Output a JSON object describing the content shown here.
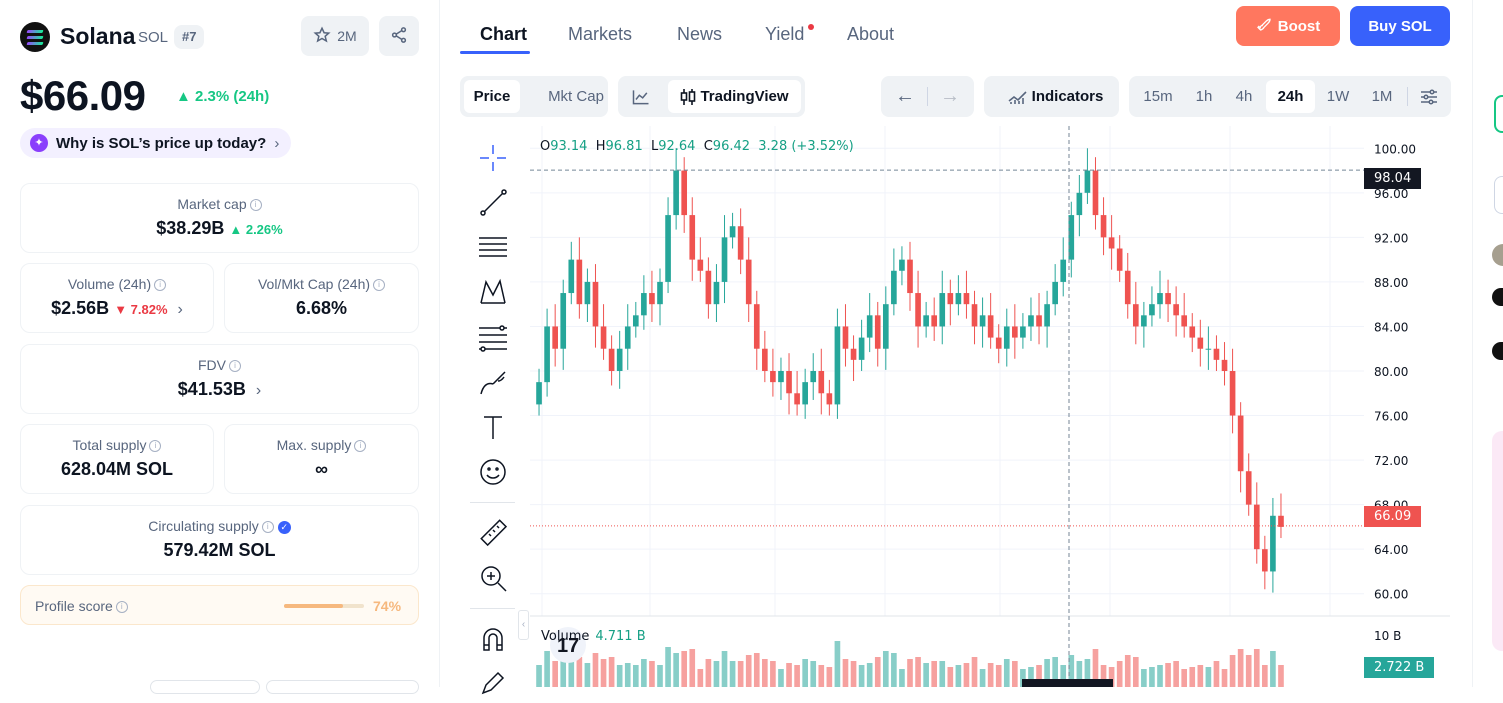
{
  "coin": {
    "name": "Solana",
    "symbol": "SOL",
    "rank": "#7",
    "watchlist_count": "2M",
    "price": "$66.09",
    "change_24h": "2.3% (24h)",
    "why_question": "Why is SOL’s price up today?"
  },
  "stats": {
    "market_cap": {
      "label": "Market cap",
      "value": "$38.29B",
      "change": "2.26%"
    },
    "volume": {
      "label": "Volume (24h)",
      "value": "$2.56B",
      "change": "7.82%"
    },
    "vol_mkt_cap": {
      "label": "Vol/Mkt Cap (24h)",
      "value": "6.68%"
    },
    "fdv": {
      "label": "FDV",
      "value": "$41.53B"
    },
    "total_supply": {
      "label": "Total supply",
      "value": "628.04M SOL"
    },
    "max_supply": {
      "label": "Max. supply",
      "value": "∞"
    },
    "circulating_supply": {
      "label": "Circulating supply",
      "value": "579.42M SOL"
    },
    "profile_score": {
      "label": "Profile score",
      "value": "74%",
      "fraction": 0.74
    }
  },
  "nav": {
    "tabs": [
      {
        "label": "Chart",
        "active": true
      },
      {
        "label": "Markets"
      },
      {
        "label": "News"
      },
      {
        "label": "Yield",
        "dot": true
      },
      {
        "label": "About"
      }
    ],
    "boost": "Boost",
    "buy": "Buy SOL"
  },
  "toolbar": {
    "price": "Price",
    "mkt_cap": "Mkt Cap",
    "tradingview": "TradingView",
    "indicators": "Indicators",
    "intervals": [
      "15m",
      "1h",
      "4h",
      "24h",
      "1W",
      "1M"
    ],
    "selected_interval": "24h"
  },
  "colors": {
    "up": "#26a69a",
    "down": "#ef5350",
    "accent": "#3861fb",
    "boost": "#ff775f"
  },
  "chart_data": {
    "type": "candlestick",
    "legend": {
      "o_label": "O",
      "o": "93.14",
      "h_label": "H",
      "h": "96.81",
      "l_label": "L",
      "l": "92.64",
      "c_label": "C",
      "c": "96.42",
      "change": "3.28 (+3.52%)"
    },
    "volume_label": "Volume",
    "volume_value": "4.711 B",
    "y_ticks": [
      "100.00",
      "96.00",
      "92.00",
      "88.00",
      "84.00",
      "80.00",
      "76.00",
      "72.00",
      "68.00",
      "64.00",
      "60.00"
    ],
    "ylim": [
      58,
      102
    ],
    "crosshair_price": "98.04",
    "last_price": "66.09",
    "volume_axis_tick": "10 B",
    "volume_last": "2.722 B",
    "closes": [
      79,
      84,
      82,
      87,
      90,
      86,
      88,
      84,
      82,
      80,
      82,
      84,
      85,
      87,
      86,
      88,
      94,
      98,
      94,
      90,
      89,
      86,
      88,
      92,
      93,
      90,
      86,
      82,
      80,
      79,
      80,
      78,
      77,
      79,
      80,
      78,
      77,
      84,
      82,
      81,
      83,
      85,
      82,
      86,
      89,
      90,
      87,
      84,
      85,
      84,
      87,
      86,
      87,
      86,
      84,
      85,
      83,
      82,
      84,
      83,
      84,
      85,
      84,
      86,
      88,
      90,
      94,
      96,
      98,
      94,
      92,
      91,
      89,
      86,
      84,
      85,
      86,
      87,
      86,
      85,
      84,
      83,
      82,
      82,
      81,
      80,
      76,
      71,
      68,
      64,
      62,
      67,
      66
    ]
  }
}
